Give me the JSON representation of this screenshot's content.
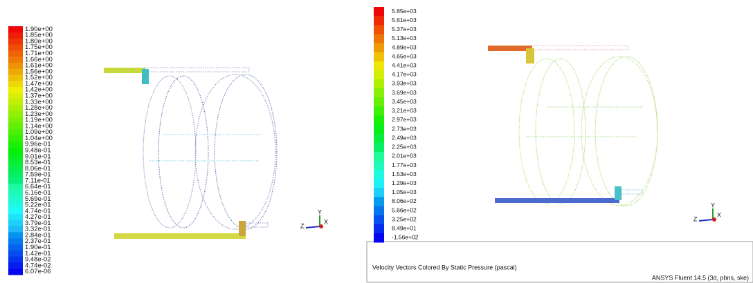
{
  "panels": [
    {
      "legend_labels": [
        "1.90e+00",
        "1.85e+00",
        "1.80e+00",
        "1.75e+00",
        "1.71e+00",
        "1.66e+00",
        "1.61e+00",
        "1.56e+00",
        "1.52e+00",
        "1.47e+00",
        "1.42e+00",
        "1.37e+00",
        "1.33e+00",
        "1.28e+00",
        "1.23e+00",
        "1.19e+00",
        "1.14e+00",
        "1.09e+00",
        "1.04e+00",
        "9.96e-01",
        "9.48e-01",
        "9.01e-01",
        "8.53e-01",
        "8.06e-01",
        "7.59e-01",
        "7.11e-01",
        "6.64e-01",
        "6.16e-01",
        "5.69e-01",
        "5.22e-01",
        "4.74e-01",
        "4.27e-01",
        "3.79e-01",
        "3.32e-01",
        "2.84e-01",
        "2.37e-01",
        "1.90e-01",
        "1.42e-01",
        "9.48e-02",
        "4.74e-02",
        "6.07e-06"
      ],
      "axes": {
        "y": "Y",
        "z": "Z",
        "x": "X"
      }
    },
    {
      "legend_labels": [
        "5.85e+03",
        "5.61e+03",
        "5.37e+03",
        "5.13e+03",
        "4.89e+03",
        "4.65e+03",
        "4.41e+03",
        "4.17e+03",
        "3.93e+03",
        "3.69e+03",
        "3.45e+03",
        "3.21e+03",
        "2.97e+03",
        "2.73e+03",
        "2.49e+03",
        "2.25e+03",
        "2.01e+03",
        "1.77e+03",
        "1.53e+03",
        "1.29e+03",
        "1.05e+03",
        "8.06e+02",
        "5.66e+02",
        "3.25e+02",
        "8.49e+01",
        "-1.56e+02"
      ],
      "axes": {
        "y": "Y",
        "z": "Z",
        "x": "X"
      }
    }
  ],
  "footer": {
    "caption": "Velocity Vectors Colored By Static Pressure (pascal)",
    "version": "ANSYS Fluent 14.5 (3d, pbns, ske)"
  }
}
